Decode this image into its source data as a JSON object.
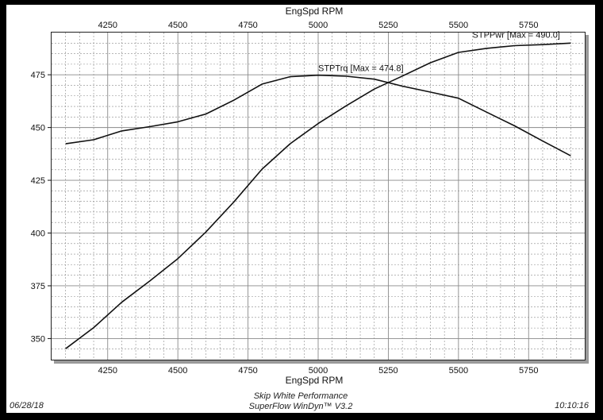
{
  "chart_data": {
    "type": "line",
    "x_title": "EngSpd RPM",
    "x_ticks": [
      4250,
      4500,
      4750,
      5000,
      5250,
      5500,
      5750
    ],
    "y_ticks": [
      350,
      375,
      400,
      425,
      450,
      475
    ],
    "xlim": [
      4050,
      5950
    ],
    "ylim": [
      340,
      495
    ],
    "grid": true,
    "series": [
      {
        "name": "STPTrq",
        "label": "STPTrq [Max = 474.8]",
        "x": [
          4100,
          4200,
          4300,
          4400,
          4500,
          4600,
          4700,
          4800,
          4900,
          5000,
          5100,
          5200,
          5300,
          5400,
          5500,
          5600,
          5700,
          5800,
          5900
        ],
        "y": [
          442.3,
          444.2,
          448.4,
          450.4,
          452.7,
          456.4,
          463.0,
          470.6,
          474.1,
          474.8,
          474.3,
          472.9,
          469.6,
          466.8,
          463.9,
          457.3,
          450.8,
          443.6,
          436.6
        ]
      },
      {
        "name": "STPPwr",
        "label": "STPPwr [Max = 490.0]",
        "x": [
          4100,
          4200,
          4300,
          4400,
          4500,
          4600,
          4700,
          4800,
          4900,
          5000,
          5100,
          5200,
          5300,
          5400,
          5500,
          5600,
          5700,
          5800,
          5900
        ],
        "y": [
          345.2,
          355.2,
          367.2,
          377.3,
          387.9,
          400.5,
          414.8,
          430.3,
          442.3,
          451.9,
          460.3,
          468.2,
          474.4,
          480.7,
          485.6,
          487.5,
          488.8,
          489.3,
          490.0
        ]
      }
    ]
  },
  "footer": {
    "date": "06/28/18",
    "company": "Skip White Performance",
    "software": "SuperFlow WinDyn™ V3.2",
    "time": "10:10:16"
  },
  "colors": {
    "line": "#111111",
    "grid": "#8a8a8a",
    "shadow": "#9a9a9a"
  }
}
